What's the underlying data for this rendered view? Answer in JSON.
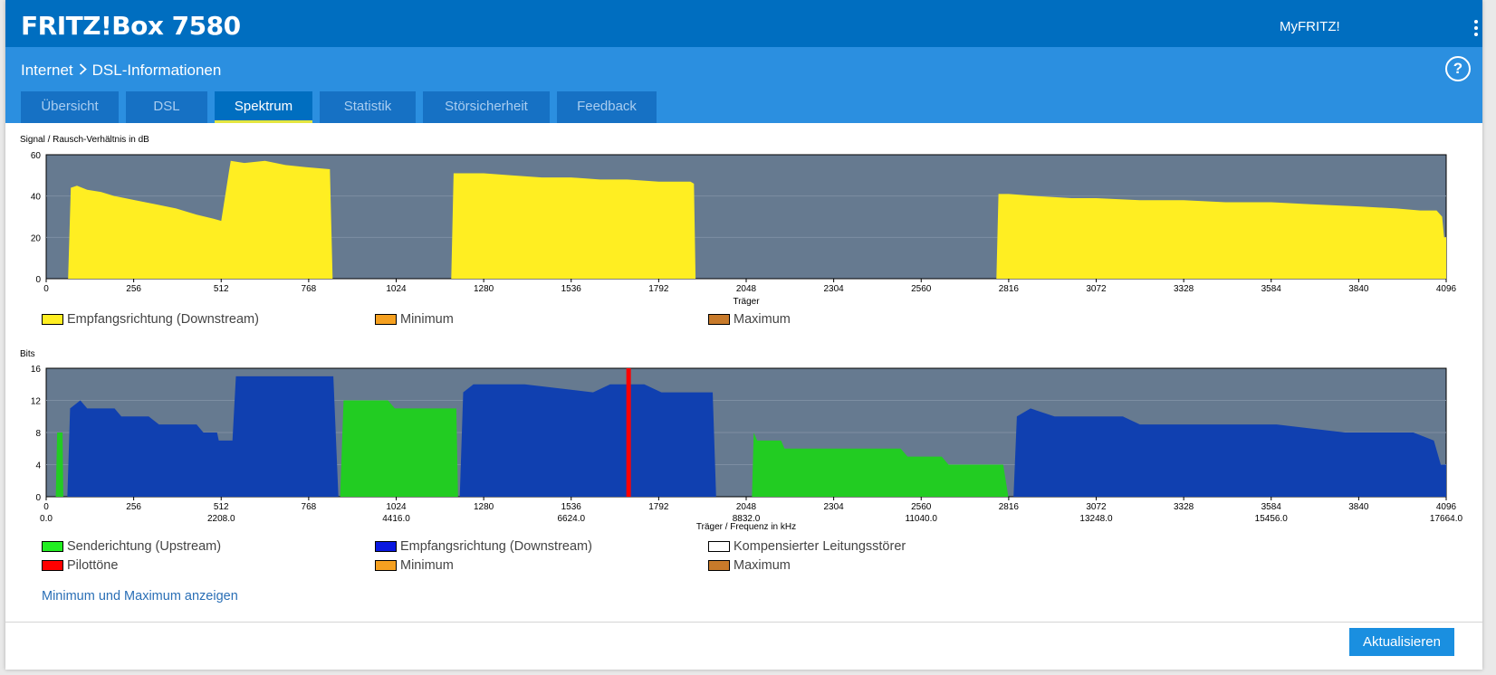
{
  "header": {
    "product": "FRITZ!Box 7580",
    "myfritz": "MyFRITZ!"
  },
  "breadcrumb": {
    "parent": "Internet",
    "current": "DSL-Informationen",
    "help": "?"
  },
  "tabs": [
    {
      "label": "Übersicht",
      "active": false
    },
    {
      "label": "DSL",
      "active": false
    },
    {
      "label": "Spektrum",
      "active": true
    },
    {
      "label": "Statistik",
      "active": false
    },
    {
      "label": "Störsicherheit",
      "active": false
    },
    {
      "label": "Feedback",
      "active": false
    }
  ],
  "snr_chart": {
    "ylabel": "Signal / Rausch-Verhältnis in dB",
    "xlabel": "Träger",
    "yticks": [
      "0",
      "20",
      "40",
      "60"
    ],
    "xticks": [
      "0",
      "256",
      "512",
      "768",
      "1024",
      "1280",
      "1536",
      "1792",
      "2048",
      "2304",
      "2560",
      "2816",
      "3072",
      "3328",
      "3584",
      "3840",
      "4096"
    ],
    "legend": [
      {
        "label": "Empfangsrichtung (Downstream)",
        "color": "#ffee22"
      },
      {
        "label": "Minimum",
        "color": "#f5a020"
      },
      {
        "label": "Maximum",
        "color": "#c87a2a"
      }
    ]
  },
  "bits_chart": {
    "ylabel": "Bits",
    "xlabel": "Träger / Frequenz in kHz",
    "yticks": [
      "0",
      "4",
      "8",
      "12",
      "16"
    ],
    "xticks": [
      "0",
      "256",
      "512",
      "768",
      "1024",
      "1280",
      "1536",
      "1792",
      "2048",
      "2304",
      "2560",
      "2816",
      "3072",
      "3328",
      "3584",
      "3840",
      "4096"
    ],
    "freq_ticks": [
      {
        "carrier": 0,
        "label": "0.0"
      },
      {
        "carrier": 512,
        "label": "2208.0"
      },
      {
        "carrier": 1024,
        "label": "4416.0"
      },
      {
        "carrier": 1536,
        "label": "6624.0"
      },
      {
        "carrier": 2048,
        "label": "8832.0"
      },
      {
        "carrier": 2560,
        "label": "11040.0"
      },
      {
        "carrier": 3072,
        "label": "13248.0"
      },
      {
        "carrier": 3584,
        "label": "15456.0"
      },
      {
        "carrier": 4096,
        "label": "17664.0"
      }
    ],
    "legend": [
      {
        "label": "Senderichtung (Upstream)",
        "color": "#22ee22"
      },
      {
        "label": "Empfangsrichtung (Downstream)",
        "color": "#0a18e0"
      },
      {
        "label": "Kompensierter Leitungsstörer",
        "color": "#ffffff"
      },
      {
        "label": "Pilottöne",
        "color": "#ff0000"
      },
      {
        "label": "Minimum",
        "color": "#f5a020"
      },
      {
        "label": "Maximum",
        "color": "#c87a2a"
      }
    ]
  },
  "links": {
    "show_minmax": "Minimum und Maximum anzeigen"
  },
  "buttons": {
    "refresh": "Aktualisieren"
  },
  "chart_data": [
    {
      "type": "area",
      "title": "",
      "ylabel": "Signal / Rausch-Verhältnis in dB",
      "xlabel": "Träger",
      "xlim": [
        0,
        4096
      ],
      "ylim": [
        0,
        60
      ],
      "grid": true,
      "legend_position": "bottom",
      "series": [
        {
          "name": "Empfangsrichtung (Downstream)",
          "color": "#ffee22",
          "points": [
            [
              64,
              0
            ],
            [
              72,
              44
            ],
            [
              90,
              45
            ],
            [
              120,
              43
            ],
            [
              160,
              42
            ],
            [
              200,
              40
            ],
            [
              260,
              38
            ],
            [
              320,
              36
            ],
            [
              380,
              34
            ],
            [
              440,
              31
            ],
            [
              490,
              29
            ],
            [
              512,
              28
            ],
            [
              535,
              52
            ],
            [
              540,
              57
            ],
            [
              580,
              56
            ],
            [
              640,
              57
            ],
            [
              700,
              55
            ],
            [
              760,
              54
            ],
            [
              830,
              53
            ],
            [
              838,
              0
            ],
            [
              1185,
              0
            ],
            [
              1192,
              51
            ],
            [
              1280,
              51
            ],
            [
              1360,
              50
            ],
            [
              1450,
              49
            ],
            [
              1536,
              49
            ],
            [
              1620,
              48
            ],
            [
              1700,
              48
            ],
            [
              1792,
              47
            ],
            [
              1885,
              47
            ],
            [
              1895,
              46
            ],
            [
              1900,
              0
            ],
            [
              2780,
              0
            ],
            [
              2786,
              41
            ],
            [
              2816,
              41
            ],
            [
              2900,
              40
            ],
            [
              3000,
              39
            ],
            [
              3072,
              39
            ],
            [
              3200,
              38
            ],
            [
              3328,
              38
            ],
            [
              3450,
              37
            ],
            [
              3584,
              37
            ],
            [
              3700,
              36
            ],
            [
              3840,
              35
            ],
            [
              3950,
              34
            ],
            [
              4020,
              33
            ],
            [
              4068,
              33
            ],
            [
              4084,
              30
            ],
            [
              4090,
              20
            ],
            [
              4096,
              20
            ],
            [
              4096,
              0
            ]
          ]
        }
      ]
    },
    {
      "type": "area",
      "title": "",
      "ylabel": "Bits",
      "xlabel": "Träger / Frequenz in kHz",
      "xlim": [
        0,
        4096
      ],
      "ylim": [
        0,
        16
      ],
      "grid": true,
      "legend_position": "bottom",
      "series": [
        {
          "name": "Senderichtung (Upstream)",
          "color": "#22cc22",
          "segments": [
            [
              [
                28,
                0
              ],
              [
                32,
                8
              ],
              [
                48,
                8
              ],
              [
                50,
                0
              ]
            ],
            [
              [
                860,
                0
              ],
              [
                870,
                12
              ],
              [
                1000,
                12
              ],
              [
                1020,
                11
              ],
              [
                1200,
                11
              ],
              [
                1205,
                0
              ]
            ],
            [
              [
                2065,
                0
              ],
              [
                2070,
                8
              ],
              [
                2080,
                7
              ],
              [
                2150,
                7
              ],
              [
                2160,
                6
              ],
              [
                2500,
                6
              ],
              [
                2520,
                5
              ],
              [
                2620,
                5
              ],
              [
                2640,
                4
              ],
              [
                2800,
                4
              ],
              [
                2815,
                0
              ]
            ]
          ]
        },
        {
          "name": "Empfangsrichtung (Downstream)",
          "color": "#1040b0",
          "segments": [
            [
              [
                62,
                0
              ],
              [
                70,
                11
              ],
              [
                100,
                12
              ],
              [
                120,
                11
              ],
              [
                200,
                11
              ],
              [
                220,
                10
              ],
              [
                300,
                10
              ],
              [
                330,
                9
              ],
              [
                440,
                9
              ],
              [
                460,
                8
              ],
              [
                500,
                8
              ],
              [
                505,
                7
              ],
              [
                545,
                7
              ],
              [
                555,
                15
              ],
              [
                700,
                15
              ],
              [
                840,
                15
              ],
              [
                855,
                0
              ]
            ],
            [
              [
                1210,
                0
              ],
              [
                1220,
                13
              ],
              [
                1250,
                14
              ],
              [
                1400,
                14
              ],
              [
                1600,
                13
              ],
              [
                1650,
                14
              ],
              [
                1750,
                14
              ],
              [
                1800,
                13
              ],
              [
                1950,
                13
              ],
              [
                1960,
                0
              ]
            ],
            [
              [
                2830,
                0
              ],
              [
                2840,
                10
              ],
              [
                2880,
                11
              ],
              [
                2950,
                10
              ],
              [
                3150,
                10
              ],
              [
                3200,
                9
              ],
              [
                3600,
                9
              ],
              [
                3800,
                8
              ],
              [
                4000,
                8
              ],
              [
                4060,
                7
              ],
              [
                4080,
                4
              ],
              [
                4096,
                4
              ],
              [
                4096,
                0
              ]
            ]
          ]
        },
        {
          "name": "Pilottöne",
          "color": "#ff0000",
          "carrier": 1704
        }
      ]
    }
  ]
}
